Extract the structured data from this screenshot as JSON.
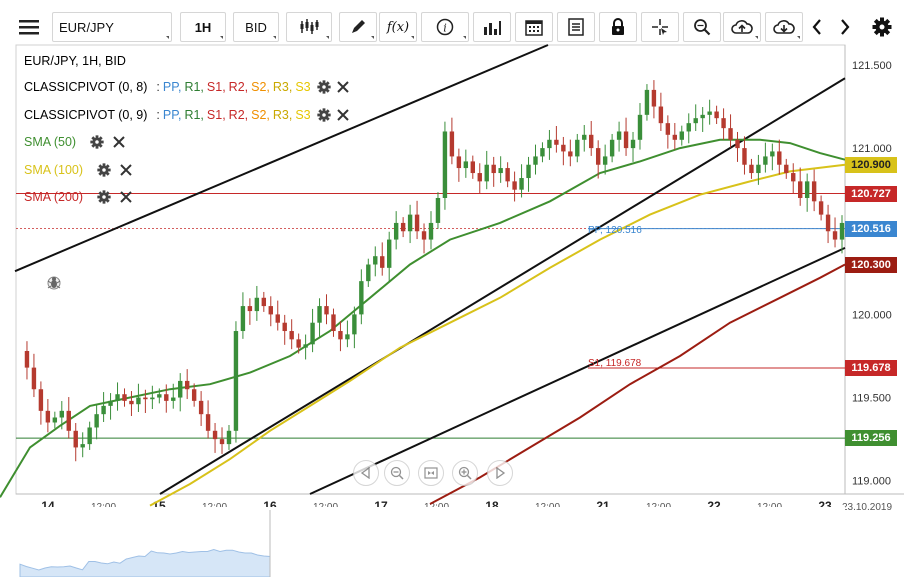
{
  "toolbar": {
    "menu_icon": "hamburger-icon",
    "symbol": "EUR/JPY",
    "timeframe": "1H",
    "price_type": "BID",
    "fx_label": "f(x)"
  },
  "legend": {
    "title": "EUR/JPY, 1H, BID",
    "pivot1": {
      "name": "CLASSICPIVOT (0, 8)",
      "sep": ":",
      "items": [
        "PP,",
        "R1,",
        "S1,",
        "R2,",
        "S2,",
        "R3,",
        "S3"
      ]
    },
    "pivot2": {
      "name": "CLASSICPIVOT (0, 9)",
      "sep": ":",
      "items": [
        "PP,",
        "R1,",
        "S1,",
        "R2,",
        "S2,",
        "R3,",
        "S3"
      ]
    },
    "sma50": "SMA (50)",
    "sma100": "SMA (100)",
    "sma200": "SMA (200)"
  },
  "colors": {
    "pp": "#3a86d0",
    "r1": "#2e7d32",
    "s1": "#c62828",
    "r2": "#c62828",
    "s2": "#ef8f00",
    "r3": "#c9a800",
    "s3": "#e6c700",
    "sma50": "#3f8f30",
    "sma100": "#d8c21a",
    "sma200": "#9c1d12",
    "up": "#3a8e3a",
    "down": "#b53a2f"
  },
  "annotations": {
    "pp_label": "PP, 120.516",
    "s1_label": "S1, 119.678"
  },
  "price_tags": [
    {
      "text": "120.900",
      "bg": "#d8c21a",
      "fg": "#222"
    },
    {
      "text": "120.727",
      "bg": "#c62828",
      "fg": "#fff"
    },
    {
      "text": "120.516",
      "bg": "#3a86d0",
      "fg": "#fff"
    },
    {
      "text": "120.300",
      "bg": "#9c1d12",
      "fg": "#fff"
    },
    {
      "text": "119.678",
      "bg": "#c62828",
      "fg": "#fff"
    },
    {
      "text": "119.256",
      "bg": "#3f8f30",
      "fg": "#fff"
    }
  ],
  "chart_data": {
    "type": "candlestick",
    "symbol": "EUR/JPY",
    "timeframe": "1H",
    "y_axis_labels": [
      "121.500",
      "121.000",
      "120.500",
      "120.000",
      "119.500",
      "119.000"
    ],
    "x_axis_labels": [
      "14",
      "12:00",
      "15",
      "12:00",
      "16",
      "12:00",
      "17",
      "12:00",
      "18",
      "12:00",
      "21",
      "12:00",
      "22",
      "12:00",
      "23",
      "23.10.2019"
    ],
    "ylim": [
      118.92,
      121.62
    ],
    "horizontal_levels": {
      "sma100_last": 120.9,
      "r1": 120.727,
      "pp": 120.516,
      "sma200_last": 120.3,
      "s1": 119.678,
      "prev_s1": 119.256
    },
    "close_series": [
      119.78,
      119.68,
      119.55,
      119.42,
      119.35,
      119.38,
      119.42,
      119.3,
      119.2,
      119.22,
      119.32,
      119.4,
      119.45,
      119.48,
      119.52,
      119.48,
      119.46,
      119.5,
      119.49,
      119.5,
      119.52,
      119.48,
      119.5,
      119.6,
      119.55,
      119.48,
      119.4,
      119.3,
      119.25,
      119.22,
      119.3,
      119.9,
      120.05,
      120.02,
      120.1,
      120.05,
      120.0,
      119.95,
      119.9,
      119.85,
      119.8,
      119.82,
      119.95,
      120.05,
      120.0,
      119.9,
      119.85,
      119.88,
      120.0,
      120.2,
      120.3,
      120.35,
      120.28,
      120.45,
      120.55,
      120.5,
      120.6,
      120.5,
      120.45,
      120.55,
      120.7,
      121.1,
      120.95,
      120.88,
      120.92,
      120.85,
      120.8,
      120.9,
      120.85,
      120.88,
      120.8,
      120.75,
      120.82,
      120.9,
      120.95,
      121.0,
      121.05,
      121.02,
      120.98,
      120.95,
      121.05,
      121.08,
      121.0,
      120.9,
      120.95,
      121.05,
      121.1,
      121.0,
      121.05,
      121.2,
      121.35,
      121.25,
      121.15,
      121.08,
      121.05,
      121.1,
      121.15,
      121.18,
      121.2,
      121.22,
      121.18,
      121.12,
      121.05,
      121.0,
      120.9,
      120.85,
      120.9,
      120.95,
      120.98,
      120.9,
      120.85,
      120.8,
      120.7,
      120.8,
      120.68,
      120.6,
      120.5,
      120.45,
      120.55
    ],
    "sma50": [
      [
        0,
        118.9
      ],
      [
        30,
        119.2
      ],
      [
        60,
        119.33
      ],
      [
        90,
        119.45
      ],
      [
        130,
        119.5
      ],
      [
        170,
        119.55
      ],
      [
        210,
        119.58
      ],
      [
        250,
        119.65
      ],
      [
        290,
        119.75
      ],
      [
        330,
        119.9
      ],
      [
        370,
        120.1
      ],
      [
        410,
        120.3
      ],
      [
        450,
        120.45
      ],
      [
        500,
        120.55
      ],
      [
        550,
        120.68
      ],
      [
        600,
        120.85
      ],
      [
        640,
        120.92
      ],
      [
        680,
        121.0
      ],
      [
        720,
        121.05
      ],
      [
        760,
        121.05
      ],
      [
        790,
        121.03
      ],
      [
        820,
        120.97
      ],
      [
        845,
        120.93
      ]
    ],
    "sma100": [
      [
        150,
        118.85
      ],
      [
        190,
        118.98
      ],
      [
        230,
        119.13
      ],
      [
        270,
        119.3
      ],
      [
        310,
        119.45
      ],
      [
        350,
        119.6
      ],
      [
        400,
        119.8
      ],
      [
        450,
        119.95
      ],
      [
        500,
        120.1
      ],
      [
        550,
        120.28
      ],
      [
        600,
        120.45
      ],
      [
        650,
        120.6
      ],
      [
        700,
        120.72
      ],
      [
        750,
        120.8
      ],
      [
        790,
        120.86
      ],
      [
        845,
        120.9
      ]
    ],
    "sma200": [
      [
        430,
        118.86
      ],
      [
        480,
        119.02
      ],
      [
        530,
        119.2
      ],
      [
        580,
        119.38
      ],
      [
        630,
        119.58
      ],
      [
        680,
        119.75
      ],
      [
        730,
        119.95
      ],
      [
        780,
        120.1
      ],
      [
        820,
        120.22
      ],
      [
        845,
        120.3
      ]
    ],
    "trendlines": [
      {
        "x1": 15,
        "y1": 120.26,
        "x2": 548,
        "y2": 121.62
      },
      {
        "x1": 160,
        "y1": 118.92,
        "x2": 845,
        "y2": 121.42
      },
      {
        "x1": 310,
        "y1": 118.92,
        "x2": 845,
        "y2": 120.4
      }
    ]
  }
}
